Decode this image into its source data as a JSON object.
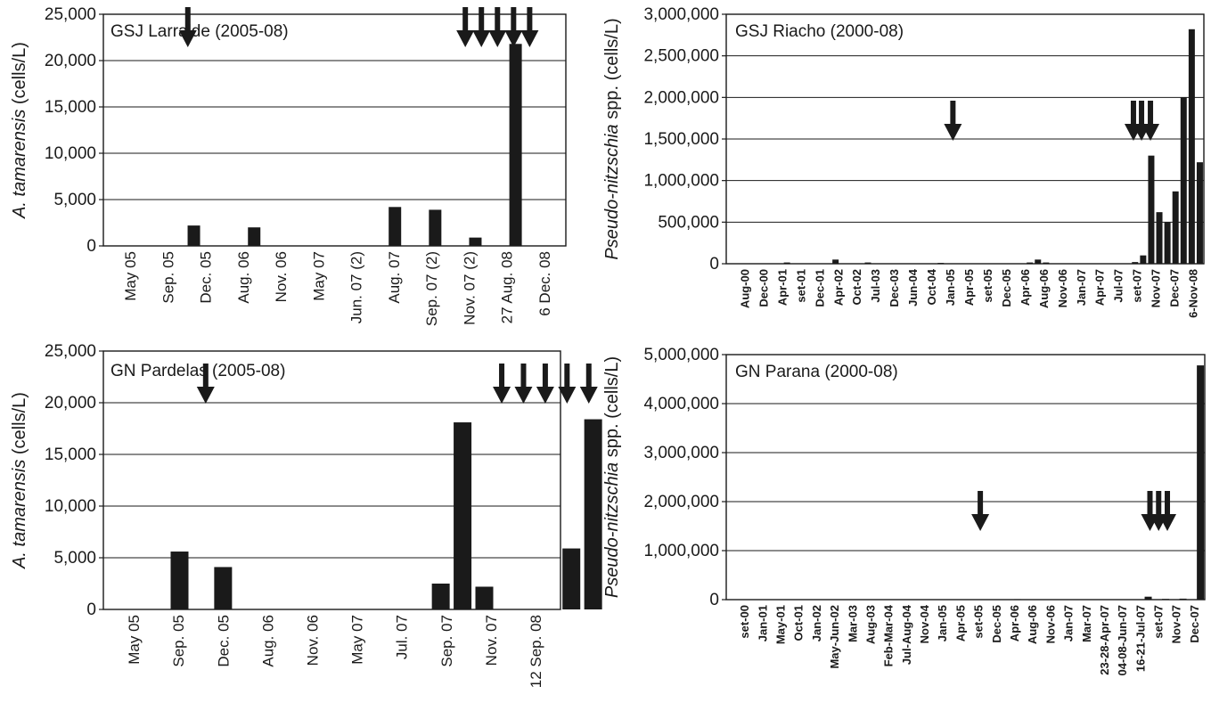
{
  "chart_data": [
    {
      "type": "bar",
      "title": "GSJ Larralde (2005-08)",
      "ylabel_italic": "A. tamarensis",
      "ylabel_rest": " (cells/L)",
      "ylim": [
        0,
        25000
      ],
      "yticks": [
        "0",
        "5,000",
        "10,000",
        "15,000",
        "20,000",
        "25,000"
      ],
      "grid": true,
      "xticks": [
        "May 05",
        "Sep. 05",
        "Dec. 05",
        "Aug. 06",
        "Nov. 06",
        "May 07",
        "Jun. 07 (2)",
        "Aug. 07",
        "Sep. 07 (2)",
        "Nov. 07 (2)",
        "27 Aug. 08",
        "6 Dec. 08"
      ],
      "n_slots": 22,
      "bars": [
        {
          "slot": 4,
          "value": 2200
        },
        {
          "slot": 7,
          "value": 2000
        },
        {
          "slot": 14,
          "value": 4200
        },
        {
          "slot": 16,
          "value": 3900
        },
        {
          "slot": 18,
          "value": 900
        },
        {
          "slot": 20,
          "value": 21800
        }
      ],
      "arrows": [
        3.7,
        17.5,
        18.3,
        19.1,
        19.9,
        20.7
      ]
    },
    {
      "type": "bar",
      "title": "GSJ Riacho (2000-08)",
      "ylabel_italic": "Pseudo-nitzschia",
      "ylabel_rest": " spp. (cells/L)",
      "ylim": [
        0,
        3000000
      ],
      "yticks": [
        "0",
        "500,000",
        "1,000,000",
        "1,500,000",
        "2,000,000",
        "2,500,000",
        "3,000,000"
      ],
      "grid": true,
      "xticks": [
        "Aug-00",
        "Dec-00",
        "Apr-01",
        "set-01",
        "Dec-01",
        "Apr-02",
        "Oct-02",
        "Jul-03",
        "Dec-03",
        "Jun-04",
        "Oct-04",
        "Jan-05",
        "Apr-05",
        "set-05",
        "Dec-05",
        "Apr-06",
        "Aug-06",
        "Nov-06",
        "Jan-07",
        "Apr-07",
        "Jul-07",
        "set-07",
        "Nov-07",
        "Dec-07",
        "6-Nov-08"
      ],
      "n_slots": 58,
      "bars": [
        {
          "slot": 7,
          "value": 15000
        },
        {
          "slot": 13,
          "value": 50000
        },
        {
          "slot": 17,
          "value": 15000
        },
        {
          "slot": 26,
          "value": 10000
        },
        {
          "slot": 37,
          "value": 15000
        },
        {
          "slot": 38,
          "value": 50000
        },
        {
          "slot": 39,
          "value": 15000
        },
        {
          "slot": 50,
          "value": 20000
        },
        {
          "slot": 51,
          "value": 100000
        },
        {
          "slot": 52,
          "value": 1300000
        },
        {
          "slot": 53,
          "value": 620000
        },
        {
          "slot": 54,
          "value": 500000
        },
        {
          "slot": 55,
          "value": 870000
        },
        {
          "slot": 56,
          "value": 2000000
        },
        {
          "slot": 57,
          "value": 2820000
        },
        {
          "slot": 58,
          "value": 1220000
        }
      ],
      "arrows": [
        27.5,
        49.8,
        50.8,
        51.9
      ]
    },
    {
      "type": "bar",
      "title": "GN Pardelas (2005-08)",
      "ylabel_italic": "A. tamarensis",
      "ylabel_rest": " (cells/L)",
      "ylim": [
        0,
        25000
      ],
      "yticks": [
        "0",
        "5,000",
        "10,000",
        "15,000",
        "20,000",
        "25,000"
      ],
      "grid": true,
      "xticks": [
        "May 05",
        "Sep. 05",
        "Dec. 05",
        "Aug. 06",
        "Nov. 06",
        "May 07",
        "Jul. 07",
        "Sep. 07",
        "Nov. 07",
        "12 Sep. 08"
      ],
      "n_slots": 20,
      "bars": [
        {
          "slot": 3,
          "value": 5600
        },
        {
          "slot": 5,
          "value": 4100
        },
        {
          "slot": 15,
          "value": 2500
        },
        {
          "slot": 16,
          "value": 18100
        },
        {
          "slot": 17,
          "value": 2200
        },
        {
          "slot": 21,
          "value": 5900
        },
        {
          "slot": 22,
          "value": 18400
        }
      ],
      "arrows": [
        4.2,
        17.8,
        18.8,
        19.8,
        20.8,
        21.8
      ]
    },
    {
      "type": "bar",
      "title": "GN Parana (2000-08)",
      "ylabel_italic": "Pseudo-nitzschia",
      "ylabel_rest": " spp. (cells/L)",
      "ylim": [
        0,
        5000000
      ],
      "yticks": [
        "0",
        "1,000,000",
        "2,000,000",
        "3,000,000",
        "4,000,000",
        "5,000,000"
      ],
      "grid": true,
      "xticks": [
        "set-00",
        "Jan-01",
        "May-01",
        "Oct-01",
        "Jan-02",
        "May-Jun-02",
        "Mar-03",
        "Aug-03",
        "Feb-Mar-04",
        "Jul-Aug-04",
        "Nov-04",
        "Jan-05",
        "Apr-05",
        "set-05",
        "Dec-05",
        "Apr-06",
        "Aug-06",
        "Nov-06",
        "Jan-07",
        "Mar-07",
        "23-28-Apr-07",
        "04-08-Jun-07",
        "16-21-Jul-07",
        "set-07",
        "Nov-07",
        "Dec-07"
      ],
      "n_slots": 54,
      "bars": [
        {
          "slot": 33,
          "value": 10000
        },
        {
          "slot": 48,
          "value": 60000
        },
        {
          "slot": 50,
          "value": 15000
        },
        {
          "slot": 52,
          "value": 20000
        },
        {
          "slot": 54,
          "value": 4780000
        }
      ],
      "arrows": [
        28.7,
        48.2,
        49.2,
        50.2
      ]
    }
  ]
}
